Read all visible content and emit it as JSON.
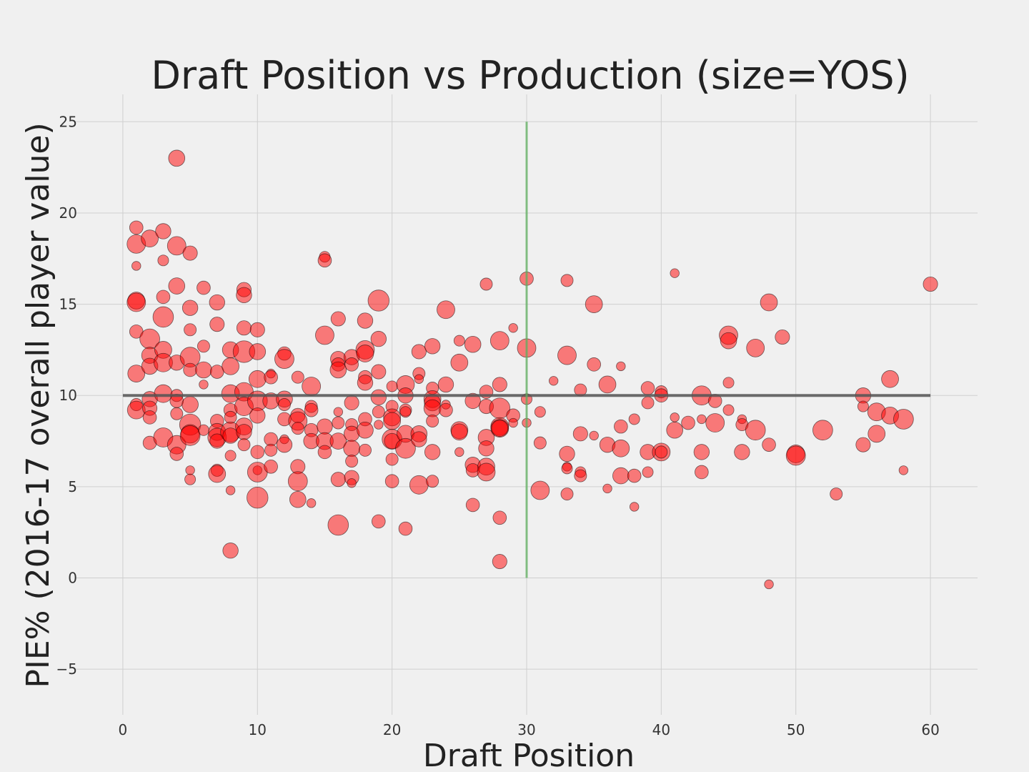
{
  "chart_data": {
    "type": "scatter",
    "title": "Draft Position vs Production (size=YOS)",
    "xlabel": "Draft Position",
    "ylabel": "PIE% (2016-17 overall player value)",
    "xlim": [
      -3.5,
      63.5
    ],
    "ylim": [
      -7.5,
      26.5
    ],
    "xticks": [
      0,
      10,
      20,
      30,
      40,
      50,
      60
    ],
    "yticks": [
      -5,
      0,
      5,
      10,
      15,
      20,
      25
    ],
    "ytick_labels": [
      "−5",
      "0",
      "5",
      "10",
      "15",
      "20",
      "25"
    ],
    "grid": true,
    "colors": {
      "point": "#ff0000",
      "hline": "#555555",
      "vline": "#60b060",
      "background": "#f0f0f0"
    },
    "hline": {
      "y": 10,
      "x_from": 0,
      "x_to": 60
    },
    "vline": {
      "x": 30,
      "y_from": 0,
      "y_to": 25
    },
    "size_encoding": "YOS",
    "points": [
      [
        1,
        19.2,
        4
      ],
      [
        1,
        18.3,
        10
      ],
      [
        1,
        17.1,
        1
      ],
      [
        1,
        15.2,
        8
      ],
      [
        1,
        15.1,
        10
      ],
      [
        1,
        13.5,
        4
      ],
      [
        1,
        11.2,
        8
      ],
      [
        1,
        9.5,
        3
      ],
      [
        1,
        9.2,
        9
      ],
      [
        2,
        18.6,
        8
      ],
      [
        2,
        13.1,
        12
      ],
      [
        2,
        12.2,
        7
      ],
      [
        2,
        11.6,
        7
      ],
      [
        2,
        9.8,
        6
      ],
      [
        2,
        9.3,
        5
      ],
      [
        2,
        8.8,
        4
      ],
      [
        2,
        7.4,
        4
      ],
      [
        3,
        19.0,
        6
      ],
      [
        3,
        17.4,
        2
      ],
      [
        3,
        15.4,
        4
      ],
      [
        3,
        14.3,
        13
      ],
      [
        3,
        12.5,
        8
      ],
      [
        3,
        11.8,
        10
      ],
      [
        3,
        10.1,
        9
      ],
      [
        3,
        7.7,
        11
      ],
      [
        4,
        23.0,
        7
      ],
      [
        4,
        18.2,
        10
      ],
      [
        4,
        16.0,
        7
      ],
      [
        4,
        11.8,
        6
      ],
      [
        4,
        10.0,
        3
      ],
      [
        4,
        9.7,
        4
      ],
      [
        4,
        9.0,
        3
      ],
      [
        4,
        7.3,
        10
      ],
      [
        4,
        6.8,
        4
      ],
      [
        5,
        17.8,
        5
      ],
      [
        5,
        14.8,
        6
      ],
      [
        5,
        13.6,
        3
      ],
      [
        5,
        12.1,
        12
      ],
      [
        5,
        11.4,
        4
      ],
      [
        5,
        9.5,
        7
      ],
      [
        5,
        8.4,
        14
      ],
      [
        5,
        7.9,
        10
      ],
      [
        5,
        7.8,
        12
      ],
      [
        5,
        5.9,
        1
      ],
      [
        5,
        5.4,
        2
      ],
      [
        6,
        15.9,
        4
      ],
      [
        6,
        12.7,
        3
      ],
      [
        6,
        11.4,
        7
      ],
      [
        6,
        10.6,
        1
      ],
      [
        6,
        8.1,
        2
      ],
      [
        7,
        15.1,
        6
      ],
      [
        7,
        13.9,
        5
      ],
      [
        7,
        11.3,
        4
      ],
      [
        7,
        8.6,
        4
      ],
      [
        7,
        8.0,
        8
      ],
      [
        7,
        7.7,
        10
      ],
      [
        7,
        7.5,
        5
      ],
      [
        7,
        5.9,
        3
      ],
      [
        7,
        5.7,
        8
      ],
      [
        8,
        12.5,
        7
      ],
      [
        8,
        11.6,
        8
      ],
      [
        8,
        10.1,
        9
      ],
      [
        8,
        9.2,
        4
      ],
      [
        8,
        8.8,
        3
      ],
      [
        8,
        8.0,
        12
      ],
      [
        8,
        7.8,
        6
      ],
      [
        8,
        6.7,
        2
      ],
      [
        8,
        4.8,
        1
      ],
      [
        8,
        1.5,
        6
      ],
      [
        9,
        15.8,
        5
      ],
      [
        9,
        15.5,
        6
      ],
      [
        9,
        13.7,
        5
      ],
      [
        9,
        12.4,
        15
      ],
      [
        9,
        10.2,
        10
      ],
      [
        9,
        9.4,
        10
      ],
      [
        9,
        8.3,
        8
      ],
      [
        9,
        8.0,
        6
      ],
      [
        9,
        7.3,
        3
      ],
      [
        10,
        13.6,
        5
      ],
      [
        10,
        12.4,
        7
      ],
      [
        10,
        10.9,
        8
      ],
      [
        10,
        9.7,
        12
      ],
      [
        10,
        8.9,
        6
      ],
      [
        10,
        6.9,
        4
      ],
      [
        10,
        5.9,
        1
      ],
      [
        10,
        5.8,
        12
      ],
      [
        10,
        4.4,
        14
      ],
      [
        11,
        11.2,
        1
      ],
      [
        11,
        11.0,
        4
      ],
      [
        11,
        9.7,
        7
      ],
      [
        11,
        7.6,
        4
      ],
      [
        11,
        7.0,
        3
      ],
      [
        11,
        6.1,
        4
      ],
      [
        12,
        12.3,
        4
      ],
      [
        12,
        12.0,
        11
      ],
      [
        12,
        9.8,
        7
      ],
      [
        12,
        9.5,
        3
      ],
      [
        12,
        8.7,
        4
      ],
      [
        12,
        7.6,
        1
      ],
      [
        12,
        7.3,
        6
      ],
      [
        13,
        11.0,
        3
      ],
      [
        13,
        8.9,
        5
      ],
      [
        13,
        8.6,
        10
      ],
      [
        13,
        8.2,
        3
      ],
      [
        13,
        6.1,
        5
      ],
      [
        13,
        5.3,
        11
      ],
      [
        13,
        4.3,
        7
      ],
      [
        14,
        10.5,
        10
      ],
      [
        14,
        9.4,
        3
      ],
      [
        14,
        9.2,
        4
      ],
      [
        14,
        8.1,
        4
      ],
      [
        14,
        7.5,
        6
      ],
      [
        14,
        4.1,
        1
      ],
      [
        15,
        17.6,
        2
      ],
      [
        15,
        17.4,
        4
      ],
      [
        15,
        13.3,
        10
      ],
      [
        15,
        8.3,
        6
      ],
      [
        15,
        7.5,
        8
      ],
      [
        15,
        6.9,
        4
      ],
      [
        16,
        14.2,
        5
      ],
      [
        16,
        12.0,
        6
      ],
      [
        16,
        11.7,
        4
      ],
      [
        16,
        11.4,
        7
      ],
      [
        16,
        9.1,
        1
      ],
      [
        16,
        8.5,
        3
      ],
      [
        16,
        7.5,
        7
      ],
      [
        16,
        5.4,
        5
      ],
      [
        16,
        2.9,
        13
      ],
      [
        17,
        12.1,
        6
      ],
      [
        17,
        11.7,
        4
      ],
      [
        17,
        9.6,
        5
      ],
      [
        17,
        8.4,
        3
      ],
      [
        17,
        7.9,
        6
      ],
      [
        17,
        7.1,
        7
      ],
      [
        17,
        6.4,
        3
      ],
      [
        17,
        5.5,
        5
      ],
      [
        17,
        5.2,
        1
      ],
      [
        18,
        14.1,
        6
      ],
      [
        18,
        12.5,
        10
      ],
      [
        18,
        12.3,
        8
      ],
      [
        18,
        11.0,
        4
      ],
      [
        18,
        10.7,
        6
      ],
      [
        18,
        8.7,
        4
      ],
      [
        18,
        8.1,
        7
      ],
      [
        18,
        7.0,
        3
      ],
      [
        19,
        15.2,
        14
      ],
      [
        19,
        13.1,
        6
      ],
      [
        19,
        11.3,
        5
      ],
      [
        19,
        9.9,
        6
      ],
      [
        19,
        9.1,
        3
      ],
      [
        19,
        8.4,
        1
      ],
      [
        19,
        3.1,
        4
      ],
      [
        20,
        10.5,
        2
      ],
      [
        20,
        9.4,
        3
      ],
      [
        20,
        8.8,
        8
      ],
      [
        20,
        8.6,
        8
      ],
      [
        20,
        7.6,
        12
      ],
      [
        20,
        7.5,
        6
      ],
      [
        20,
        6.5,
        3
      ],
      [
        20,
        5.3,
        4
      ],
      [
        21,
        10.6,
        9
      ],
      [
        21,
        10.0,
        6
      ],
      [
        21,
        9.2,
        3
      ],
      [
        21,
        9.1,
        2
      ],
      [
        21,
        7.9,
        8
      ],
      [
        21,
        7.1,
        12
      ],
      [
        21,
        2.7,
        4
      ],
      [
        22,
        12.4,
        5
      ],
      [
        22,
        11.2,
        3
      ],
      [
        22,
        10.9,
        1
      ],
      [
        22,
        7.9,
        7
      ],
      [
        22,
        7.6,
        6
      ],
      [
        22,
        5.1,
        10
      ],
      [
        23,
        12.7,
        6
      ],
      [
        23,
        10.4,
        3
      ],
      [
        23,
        9.8,
        8
      ],
      [
        23,
        9.6,
        7
      ],
      [
        23,
        9.3,
        8
      ],
      [
        23,
        8.6,
        3
      ],
      [
        23,
        6.9,
        6
      ],
      [
        23,
        5.3,
        3
      ],
      [
        24,
        14.7,
        9
      ],
      [
        24,
        10.6,
        6
      ],
      [
        24,
        9.5,
        1
      ],
      [
        24,
        9.2,
        4
      ],
      [
        25,
        13.0,
        2
      ],
      [
        25,
        11.8,
        8
      ],
      [
        25,
        8.1,
        8
      ],
      [
        25,
        8.0,
        7
      ],
      [
        25,
        6.9,
        1
      ],
      [
        26,
        12.8,
        7
      ],
      [
        26,
        9.7,
        6
      ],
      [
        26,
        6.2,
        6
      ],
      [
        26,
        5.9,
        4
      ],
      [
        26,
        4.0,
        4
      ],
      [
        27,
        16.1,
        3
      ],
      [
        27,
        10.2,
        4
      ],
      [
        27,
        9.4,
        5
      ],
      [
        27,
        7.7,
        7
      ],
      [
        27,
        7.1,
        6
      ],
      [
        27,
        6.1,
        8
      ],
      [
        27,
        5.8,
        9
      ],
      [
        28,
        13.0,
        10
      ],
      [
        28,
        10.6,
        5
      ],
      [
        28,
        9.3,
        13
      ],
      [
        28,
        8.3,
        9
      ],
      [
        28,
        8.2,
        9
      ],
      [
        28,
        8.2,
        7
      ],
      [
        28,
        3.3,
        4
      ],
      [
        28,
        0.9,
        5
      ],
      [
        29,
        13.7,
        1
      ],
      [
        29,
        8.9,
        4
      ],
      [
        29,
        8.5,
        1
      ],
      [
        30,
        16.4,
        4
      ],
      [
        30,
        12.6,
        10
      ],
      [
        30,
        9.8,
        2
      ],
      [
        30,
        8.5,
        1
      ],
      [
        31,
        9.1,
        2
      ],
      [
        31,
        7.4,
        3
      ],
      [
        31,
        4.8,
        10
      ],
      [
        32,
        10.8,
        1
      ],
      [
        33,
        16.3,
        3
      ],
      [
        33,
        12.2,
        10
      ],
      [
        33,
        6.8,
        6
      ],
      [
        33,
        6.1,
        1
      ],
      [
        33,
        6.0,
        2
      ],
      [
        33,
        4.6,
        3
      ],
      [
        34,
        10.3,
        3
      ],
      [
        34,
        7.9,
        5
      ],
      [
        34,
        5.8,
        2
      ],
      [
        34,
        5.6,
        3
      ],
      [
        35,
        15.0,
        8
      ],
      [
        35,
        11.7,
        4
      ],
      [
        35,
        7.8,
        1
      ],
      [
        36,
        10.6,
        8
      ],
      [
        36,
        7.3,
        6
      ],
      [
        36,
        4.9,
        1
      ],
      [
        37,
        11.6,
        1
      ],
      [
        37,
        8.3,
        4
      ],
      [
        37,
        7.1,
        8
      ],
      [
        37,
        5.6,
        7
      ],
      [
        38,
        8.7,
        2
      ],
      [
        38,
        5.6,
        4
      ],
      [
        38,
        3.9,
        1
      ],
      [
        39,
        10.4,
        4
      ],
      [
        39,
        9.6,
        3
      ],
      [
        39,
        6.9,
        6
      ],
      [
        39,
        5.8,
        2
      ],
      [
        40,
        10.2,
        3
      ],
      [
        40,
        10.0,
        4
      ],
      [
        40,
        6.9,
        9
      ],
      [
        40,
        6.9,
        3
      ],
      [
        41,
        16.7,
        1
      ],
      [
        41,
        8.8,
        1
      ],
      [
        41,
        8.1,
        7
      ],
      [
        42,
        8.5,
        4
      ],
      [
        43,
        10.0,
        11
      ],
      [
        43,
        8.7,
        1
      ],
      [
        43,
        6.9,
        6
      ],
      [
        43,
        5.8,
        4
      ],
      [
        44,
        9.7,
        4
      ],
      [
        44,
        8.5,
        10
      ],
      [
        45,
        13.3,
        10
      ],
      [
        45,
        13.0,
        7
      ],
      [
        45,
        10.7,
        2
      ],
      [
        45,
        9.2,
        2
      ],
      [
        46,
        8.7,
        1
      ],
      [
        46,
        8.4,
        3
      ],
      [
        46,
        6.9,
        6
      ],
      [
        47,
        12.6,
        9
      ],
      [
        47,
        8.1,
        12
      ],
      [
        48,
        15.1,
        8
      ],
      [
        48,
        7.3,
        4
      ],
      [
        48,
        -0.35,
        1
      ],
      [
        49,
        13.2,
        5
      ],
      [
        50,
        6.8,
        9
      ],
      [
        50,
        6.7,
        11
      ],
      [
        52,
        8.1,
        12
      ],
      [
        53,
        4.6,
        3
      ],
      [
        55,
        10.0,
        6
      ],
      [
        55,
        9.4,
        2
      ],
      [
        55,
        7.3,
        5
      ],
      [
        56,
        9.1,
        9
      ],
      [
        56,
        7.9,
        8
      ],
      [
        57,
        10.9,
        8
      ],
      [
        57,
        8.9,
        8
      ],
      [
        58,
        8.7,
        12
      ],
      [
        58,
        5.9,
        1
      ],
      [
        60,
        16.1,
        5
      ]
    ]
  }
}
